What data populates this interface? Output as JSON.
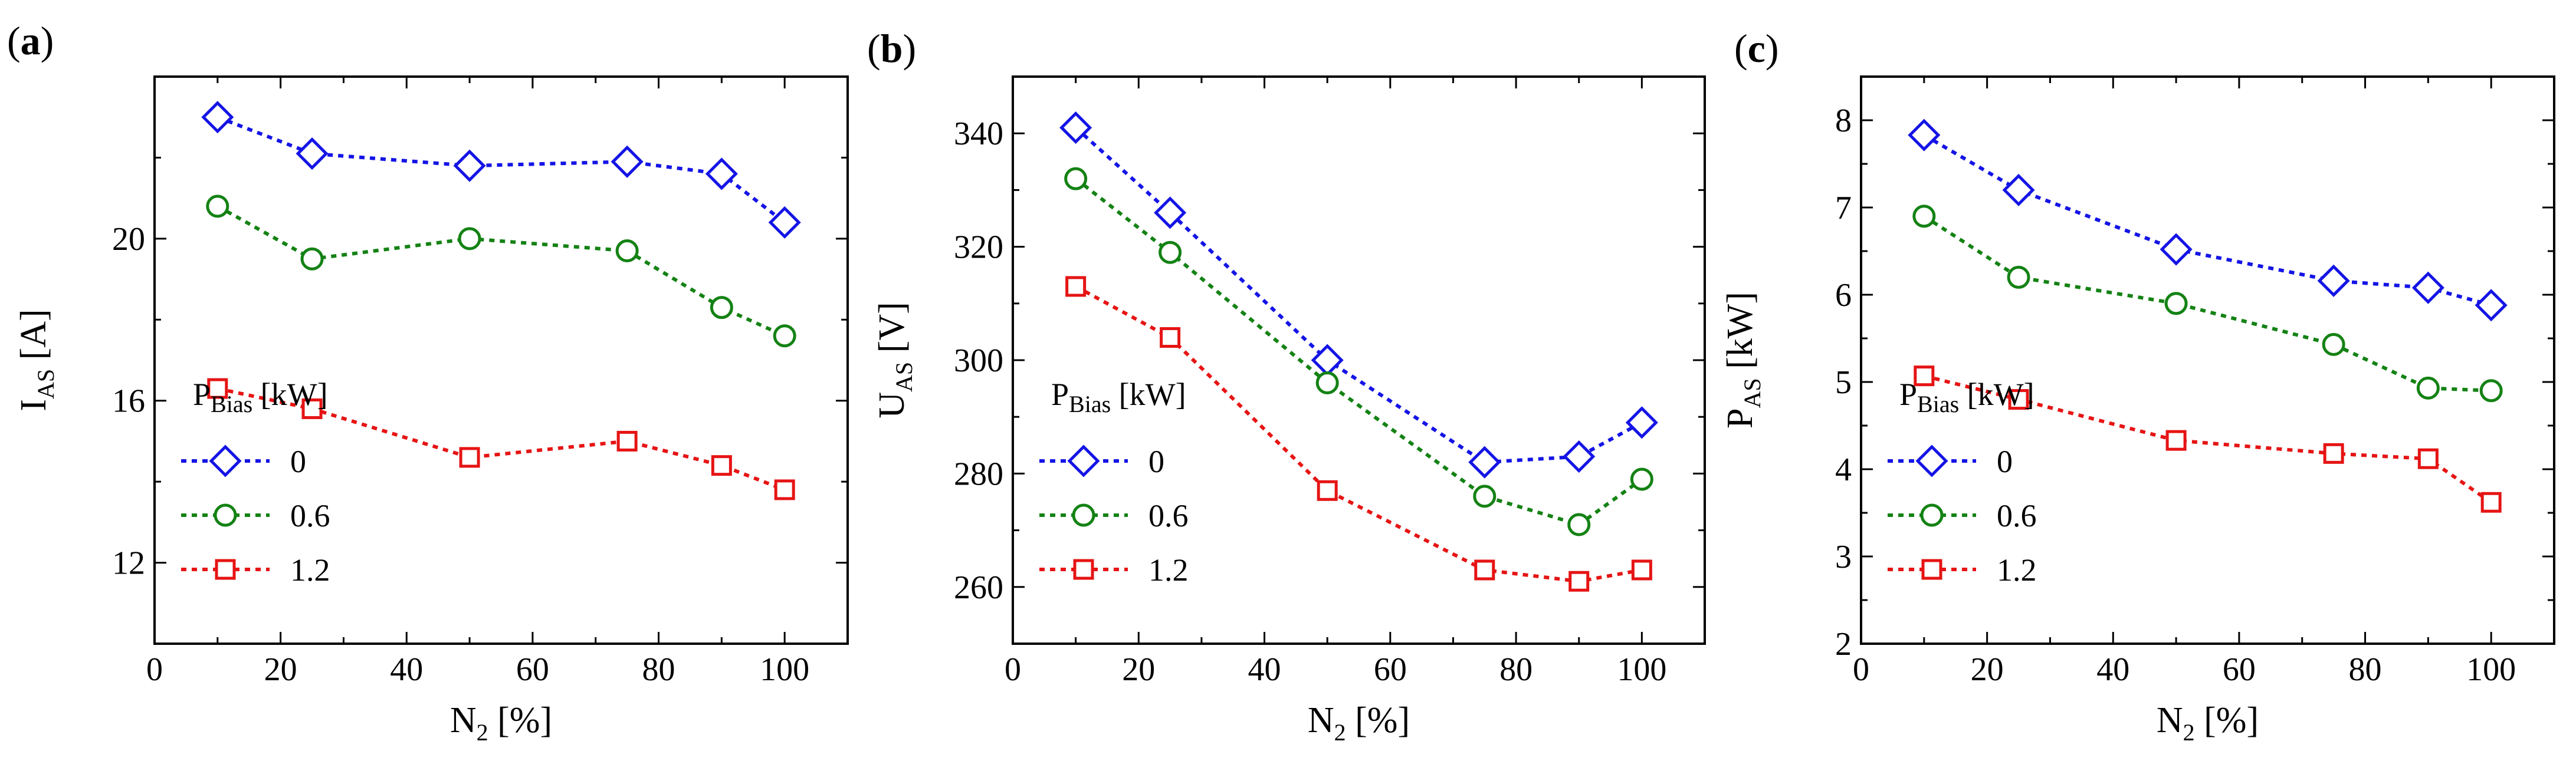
{
  "figure": {
    "panels": [
      {
        "label": "(a)",
        "bold": "a"
      },
      {
        "label": "(b)",
        "bold": "b"
      },
      {
        "label": "(c)",
        "bold": "c"
      }
    ]
  },
  "series_style": [
    {
      "name": "0",
      "color": "#1414e6",
      "marker": "diamond"
    },
    {
      "name": "0.6",
      "color": "#148214",
      "marker": "circle"
    },
    {
      "name": "1.2",
      "color": "#e61414",
      "marker": "square"
    }
  ],
  "chart_data": [
    {
      "type": "line",
      "panel": "(a)",
      "xlabel": {
        "main": "N",
        "sub": "2",
        "unit": " [%]"
      },
      "ylabel": {
        "main": "I",
        "sub": "AS",
        "unit": " [A]"
      },
      "xlim": [
        0,
        110
      ],
      "ylim": [
        10,
        24
      ],
      "xticks": [
        0,
        20,
        40,
        60,
        80,
        100
      ],
      "yticks": [
        12,
        16,
        20
      ],
      "legend": {
        "title_main": "P",
        "title_sub": "Bias",
        "title_unit": " [kW]",
        "placement": "lower-left"
      },
      "x": [
        10,
        25,
        50,
        75,
        90,
        100
      ],
      "series": [
        {
          "name": "0",
          "values": [
            23.0,
            22.1,
            21.8,
            21.9,
            21.6,
            20.4
          ]
        },
        {
          "name": "0.6",
          "values": [
            20.8,
            19.5,
            20.0,
            19.7,
            18.3,
            17.6
          ]
        },
        {
          "name": "1.2",
          "values": [
            16.3,
            15.8,
            14.6,
            15.0,
            14.4,
            13.8
          ]
        }
      ]
    },
    {
      "type": "line",
      "panel": "(b)",
      "xlabel": {
        "main": "N",
        "sub": "2",
        "unit": " [%]"
      },
      "ylabel": {
        "main": "U",
        "sub": "AS",
        "unit": " [V]"
      },
      "xlim": [
        0,
        110
      ],
      "ylim": [
        250,
        350
      ],
      "xticks": [
        0,
        20,
        40,
        60,
        80,
        100
      ],
      "yticks": [
        260,
        280,
        300,
        320,
        340
      ],
      "legend": {
        "title_main": "P",
        "title_sub": "Bias",
        "title_unit": " [kW]",
        "placement": "lower-left"
      },
      "x": [
        10,
        25,
        50,
        75,
        90,
        100
      ],
      "series": [
        {
          "name": "0",
          "values": [
            341,
            326,
            300,
            282,
            283,
            289
          ]
        },
        {
          "name": "0.6",
          "values": [
            332,
            319,
            296,
            276,
            271,
            279
          ]
        },
        {
          "name": "1.2",
          "values": [
            313,
            304,
            277,
            263,
            261,
            263
          ]
        }
      ]
    },
    {
      "type": "line",
      "panel": "(c)",
      "xlabel": {
        "main": "N",
        "sub": "2",
        "unit": " [%]"
      },
      "ylabel": {
        "main": "P",
        "sub": "AS",
        "unit": " [kW]"
      },
      "xlim": [
        0,
        110
      ],
      "ylim": [
        2,
        8.5
      ],
      "xticks": [
        0,
        20,
        40,
        60,
        80,
        100
      ],
      "yticks": [
        2,
        3,
        4,
        5,
        6,
        7,
        8
      ],
      "legend": {
        "title_main": "P",
        "title_sub": "Bias",
        "title_unit": " [kW]",
        "placement": "lower-left"
      },
      "x": [
        10,
        25,
        50,
        75,
        90,
        100
      ],
      "series": [
        {
          "name": "0",
          "values": [
            7.83,
            7.2,
            6.52,
            6.16,
            6.08,
            5.88
          ]
        },
        {
          "name": "0.6",
          "values": [
            6.9,
            6.2,
            5.9,
            5.43,
            4.93,
            4.9
          ]
        },
        {
          "name": "1.2",
          "values": [
            5.07,
            4.8,
            4.33,
            4.18,
            4.12,
            3.62
          ]
        }
      ]
    }
  ]
}
